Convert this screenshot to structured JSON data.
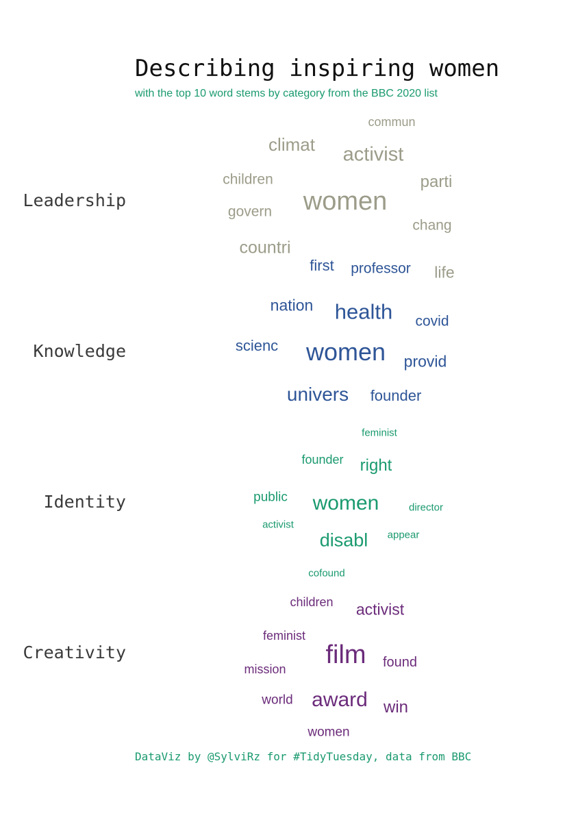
{
  "title": "Describing inspiring women",
  "subtitle": "with the top 10 word stems by category from the BBC 2020 list",
  "caption": "DataViz by @SylviRz for #TidyTuesday, data from BBC",
  "colors": {
    "accent": "#1a9a6e",
    "leadership": "#9c9c8a",
    "knowledge": "#2e5597",
    "identity": "#1a9a6e",
    "creativity": "#6b2b7a"
  },
  "chart_data": {
    "type": "wordcloud",
    "title": "Describing inspiring women",
    "subtitle": "with the top 10 word stems by category from the BBC 2020 list",
    "categories": [
      {
        "name": "Leadership",
        "words": [
          {
            "word": "commun"
          },
          {
            "word": "climat"
          },
          {
            "word": "activist"
          },
          {
            "word": "children"
          },
          {
            "word": "parti"
          },
          {
            "word": "women"
          },
          {
            "word": "govern"
          },
          {
            "word": "chang"
          },
          {
            "word": "countri"
          },
          {
            "word": "life"
          }
        ]
      },
      {
        "name": "Knowledge",
        "words": [
          {
            "word": "first"
          },
          {
            "word": "professor"
          },
          {
            "word": "nation"
          },
          {
            "word": "health"
          },
          {
            "word": "covid"
          },
          {
            "word": "scienc"
          },
          {
            "word": "women"
          },
          {
            "word": "provid"
          },
          {
            "word": "univers"
          },
          {
            "word": "founder"
          }
        ]
      },
      {
        "name": "Identity",
        "words": [
          {
            "word": "feminist"
          },
          {
            "word": "founder"
          },
          {
            "word": "right"
          },
          {
            "word": "public"
          },
          {
            "word": "women"
          },
          {
            "word": "director"
          },
          {
            "word": "activist"
          },
          {
            "word": "disabl"
          },
          {
            "word": "appear"
          },
          {
            "word": "cofound"
          }
        ]
      },
      {
        "name": "Creativity",
        "words": [
          {
            "word": "children"
          },
          {
            "word": "activist"
          },
          {
            "word": "feminist"
          },
          {
            "word": "film"
          },
          {
            "word": "mission"
          },
          {
            "word": "found"
          },
          {
            "word": "world"
          },
          {
            "word": "award"
          },
          {
            "word": "win"
          },
          {
            "word": "women"
          }
        ]
      }
    ]
  }
}
